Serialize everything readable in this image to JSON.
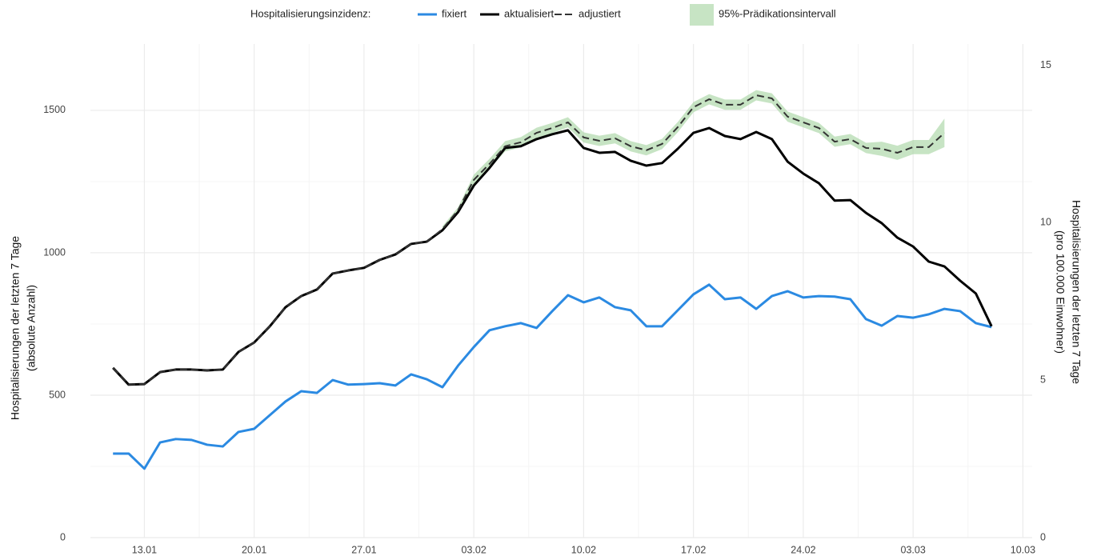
{
  "chart_data": {
    "type": "line",
    "legend_title": "Hospitalisierungsinzidenz:",
    "ylabel": [
      "Hospitalisierungen der letzten 7 Tage",
      "(absolute Anzahl)"
    ],
    "y2label": [
      "Hospitalisierungen der letzten 7 Tage",
      "(pro 100.000 Einwohner)"
    ],
    "x": [
      "11.01",
      "12.01",
      "13.01",
      "14.01",
      "15.01",
      "16.01",
      "17.01",
      "18.01",
      "19.01",
      "20.01",
      "21.01",
      "22.01",
      "23.01",
      "24.01",
      "25.01",
      "26.01",
      "27.01",
      "28.01",
      "29.01",
      "30.01",
      "31.01",
      "01.02",
      "02.02",
      "03.02",
      "04.02",
      "05.02",
      "06.02",
      "07.02",
      "08.02",
      "09.02",
      "10.02",
      "11.02",
      "12.02",
      "13.02",
      "14.02",
      "15.02",
      "16.02",
      "17.02",
      "18.02",
      "19.02",
      "20.02",
      "21.02",
      "22.02",
      "23.02",
      "24.02",
      "25.02",
      "26.02",
      "27.02",
      "28.02",
      "01.03",
      "02.03",
      "03.03",
      "04.03",
      "05.03",
      "06.03",
      "07.03",
      "08.03"
    ],
    "xlim": [
      "09.01",
      "11.03"
    ],
    "xticks": [
      "13.01",
      "20.01",
      "27.01",
      "03.02",
      "10.02",
      "17.02",
      "24.02",
      "03.03",
      "10.03"
    ],
    "ylim": [
      0,
      1747
    ],
    "yticks": [
      0,
      500,
      1000,
      1500
    ],
    "y2lim": [
      0,
      15.8
    ],
    "y2ticks": [
      0,
      5,
      10,
      15
    ],
    "grid": true,
    "series": [
      {
        "name": "fixiert",
        "color": "#2b8ae2",
        "values": [
          295,
          295,
          242,
          334,
          346,
          343,
          326,
          320,
          371,
          382,
          430,
          478,
          514,
          508,
          553,
          537,
          539,
          542,
          534,
          573,
          556,
          528,
          604,
          669,
          728,
          742,
          753,
          736,
          795,
          851,
          826,
          843,
          809,
          798,
          742,
          742,
          798,
          854,
          888,
          837,
          843,
          803,
          848,
          865,
          843,
          848,
          846,
          837,
          767,
          744,
          778,
          772,
          784,
          803,
          795,
          753,
          739
        ]
      },
      {
        "name": "aktualisiert",
        "color": "#000000",
        "values": [
          596,
          537,
          539,
          581,
          590,
          590,
          587,
          590,
          652,
          685,
          742,
          809,
          848,
          871,
          927,
          938,
          947,
          975,
          994,
          1031,
          1039,
          1079,
          1143,
          1236,
          1298,
          1368,
          1374,
          1399,
          1416,
          1430,
          1368,
          1351,
          1354,
          1323,
          1306,
          1315,
          1365,
          1421,
          1438,
          1410,
          1399,
          1424,
          1399,
          1320,
          1278,
          1244,
          1183,
          1185,
          1140,
          1104,
          1053,
          1022,
          969,
          952,
          902,
          857,
          742
        ]
      },
      {
        "name": "adjustiert",
        "color": "#333333",
        "dashed": true,
        "values": [
          596,
          537,
          539,
          581,
          590,
          590,
          587,
          590,
          652,
          685,
          742,
          809,
          848,
          871,
          927,
          938,
          947,
          975,
          994,
          1031,
          1039,
          1083,
          1150,
          1256,
          1312,
          1374,
          1388,
          1421,
          1438,
          1458,
          1405,
          1393,
          1402,
          1374,
          1360,
          1382,
          1441,
          1511,
          1539,
          1520,
          1520,
          1553,
          1542,
          1478,
          1458,
          1438,
          1390,
          1399,
          1368,
          1365,
          1351,
          1371,
          1371,
          1421,
          null,
          null,
          null
        ]
      }
    ],
    "interval": {
      "name": "95%-Prädikationsintervall",
      "color": "#a9d6a4",
      "lower": [
        null,
        null,
        null,
        null,
        null,
        null,
        null,
        null,
        null,
        null,
        null,
        null,
        null,
        null,
        null,
        null,
        null,
        null,
        null,
        null,
        null,
        1073,
        1140,
        1238,
        1294,
        1356,
        1370,
        1403,
        1420,
        1440,
        1387,
        1375,
        1384,
        1356,
        1342,
        1364,
        1423,
        1493,
        1521,
        1502,
        1502,
        1535,
        1524,
        1460,
        1440,
        1420,
        1372,
        1381,
        1350,
        1340,
        1326,
        1346,
        1346,
        1371,
        null,
        null,
        null
      ],
      "upper": [
        null,
        null,
        null,
        null,
        null,
        null,
        null,
        null,
        null,
        null,
        null,
        null,
        null,
        null,
        null,
        null,
        null,
        null,
        null,
        null,
        null,
        1093,
        1160,
        1274,
        1330,
        1392,
        1406,
        1439,
        1456,
        1476,
        1423,
        1411,
        1420,
        1392,
        1378,
        1400,
        1459,
        1529,
        1557,
        1538,
        1538,
        1571,
        1560,
        1496,
        1476,
        1456,
        1408,
        1417,
        1386,
        1390,
        1376,
        1396,
        1396,
        1471,
        null,
        null,
        null
      ]
    }
  }
}
